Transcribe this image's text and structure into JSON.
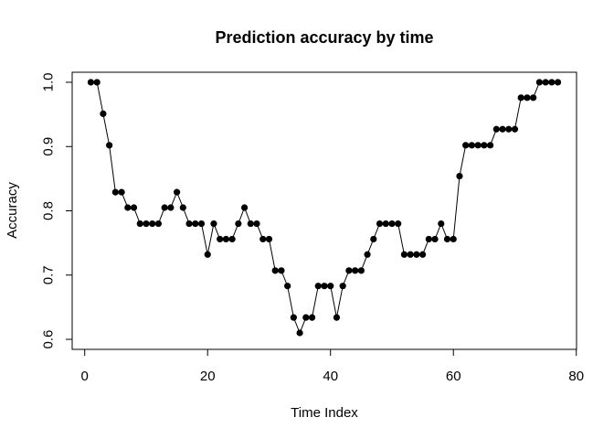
{
  "chart_data": {
    "type": "line",
    "title": "Prediction accuracy by time",
    "xlabel": "Time Index",
    "ylabel": "Accuracy",
    "xlim": [
      0,
      80
    ],
    "ylim": [
      0.6,
      1.0
    ],
    "x_ticks": [
      0,
      20,
      40,
      60,
      80
    ],
    "y_ticks": [
      0.6,
      0.7,
      0.8,
      0.9,
      1.0
    ],
    "x_tick_labels": [
      "0",
      "20",
      "40",
      "60",
      "80"
    ],
    "y_tick_labels": [
      "0.6",
      "0.7",
      "0.8",
      "0.9",
      "1.0"
    ],
    "grid": false,
    "legend": "none",
    "marker": "filled-circle",
    "color": "#000000",
    "series": [
      {
        "x": [
          1,
          2,
          3,
          4,
          5,
          6,
          7,
          8,
          9,
          10,
          11,
          12,
          13,
          14,
          15,
          16,
          17,
          18,
          19,
          20,
          21,
          22,
          23,
          24,
          25,
          26,
          27,
          28,
          29,
          30,
          31,
          32,
          33,
          34,
          35,
          36,
          37,
          38,
          39,
          40,
          41,
          42,
          43,
          44,
          45,
          46,
          47,
          48,
          49,
          50,
          51,
          52,
          53,
          54,
          55,
          56,
          57,
          58,
          59,
          60,
          61,
          62,
          63,
          64,
          65,
          66,
          67,
          68,
          69,
          70,
          71,
          72,
          73,
          74,
          75,
          76,
          77
        ],
        "values": [
          1.0,
          1.0,
          0.951,
          0.902,
          0.829,
          0.829,
          0.805,
          0.805,
          0.78,
          0.78,
          0.78,
          0.78,
          0.805,
          0.805,
          0.829,
          0.805,
          0.78,
          0.78,
          0.78,
          0.732,
          0.78,
          0.756,
          0.756,
          0.756,
          0.78,
          0.805,
          0.78,
          0.78,
          0.756,
          0.756,
          0.707,
          0.707,
          0.683,
          0.634,
          0.61,
          0.634,
          0.634,
          0.683,
          0.683,
          0.683,
          0.634,
          0.683,
          0.707,
          0.707,
          0.707,
          0.732,
          0.756,
          0.78,
          0.78,
          0.78,
          0.78,
          0.732,
          0.732,
          0.732,
          0.732,
          0.756,
          0.756,
          0.78,
          0.756,
          0.756,
          0.854,
          0.902,
          0.902,
          0.902,
          0.902,
          0.902,
          0.927,
          0.927,
          0.927,
          0.927,
          0.976,
          0.976,
          0.976,
          1.0,
          1.0,
          1.0,
          1.0
        ]
      }
    ]
  }
}
